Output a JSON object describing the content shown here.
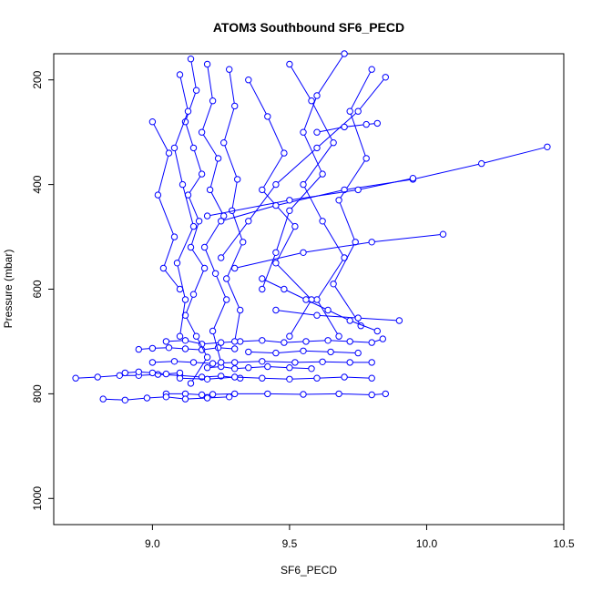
{
  "chart_data": {
    "type": "scatter",
    "title": "ATOM3 Southbound SF6_PECD",
    "xlabel": "SF6_PECD",
    "ylabel": "Pressure (mbar)",
    "xlim": [
      8.64,
      10.5
    ],
    "ylim": [
      1050,
      150
    ],
    "y_reversed": true,
    "x_ticks": [
      9.0,
      9.5,
      10.0,
      10.5
    ],
    "x_tick_labels": [
      "9.0",
      "9.5",
      "10.0",
      "10.5"
    ],
    "y_ticks": [
      200,
      400,
      600,
      800,
      1000
    ],
    "y_tick_labels": [
      "200",
      "400",
      "600",
      "800",
      "1000"
    ],
    "grid": false,
    "series_color": "#0000ff",
    "marker": "open-circle",
    "style": "lines-and-points",
    "series": [
      {
        "x": [
          9.05,
          9.12,
          9.18,
          9.22,
          9.3,
          9.42,
          9.55,
          9.68,
          9.8,
          9.85
        ],
        "y": [
          800,
          800,
          802,
          801,
          800,
          800,
          801,
          800,
          802,
          800
        ]
      },
      {
        "x": [
          8.72,
          8.8,
          8.88,
          8.95,
          9.02,
          9.1,
          9.18,
          9.25,
          9.32
        ],
        "y": [
          770,
          768,
          765,
          765,
          763,
          765,
          768,
          766,
          770
        ]
      },
      {
        "x": [
          8.82,
          8.9,
          8.98,
          9.05,
          9.12,
          9.2,
          9.28
        ],
        "y": [
          810,
          812,
          808,
          806,
          810,
          808,
          806
        ]
      },
      {
        "x": [
          9.0,
          9.08,
          9.15,
          9.22,
          9.3,
          9.4,
          9.52,
          9.62,
          9.72,
          9.8
        ],
        "y": [
          740,
          738,
          740,
          742,
          740,
          738,
          740,
          739,
          740,
          740
        ]
      },
      {
        "x": [
          9.05,
          9.12,
          9.18,
          9.25,
          9.32,
          9.4,
          9.48,
          9.56,
          9.64,
          9.72,
          9.8,
          9.84
        ],
        "y": [
          700,
          698,
          705,
          702,
          700,
          698,
          702,
          700,
          698,
          700,
          702,
          695
        ]
      },
      {
        "x": [
          8.95,
          9.0,
          9.06,
          9.12,
          9.18,
          9.24,
          9.3
        ],
        "y": [
          715,
          713,
          712,
          714,
          716,
          712,
          714
        ]
      },
      {
        "x": [
          9.2,
          9.25,
          9.3,
          9.35,
          9.42,
          9.5,
          9.58
        ],
        "y": [
          750,
          748,
          752,
          750,
          748,
          750,
          752
        ]
      },
      {
        "x": [
          9.14,
          9.16,
          9.12,
          9.15,
          9.18,
          9.13,
          9.17,
          9.14,
          9.19,
          9.15,
          9.12,
          9.16,
          9.2,
          9.14
        ],
        "y": [
          160,
          220,
          280,
          330,
          380,
          420,
          470,
          520,
          560,
          610,
          650,
          690,
          730,
          780
        ]
      },
      {
        "x": [
          9.2,
          9.22,
          9.18,
          9.24,
          9.21,
          9.26,
          9.19,
          9.23,
          9.27,
          9.22,
          9.25
        ],
        "y": [
          170,
          240,
          300,
          350,
          410,
          460,
          520,
          570,
          620,
          680,
          740
        ]
      },
      {
        "x": [
          9.28,
          9.3,
          9.26,
          9.31,
          9.29,
          9.33,
          9.27,
          9.32,
          9.3
        ],
        "y": [
          180,
          250,
          320,
          390,
          450,
          510,
          580,
          640,
          700
        ]
      },
      {
        "x": [
          9.1,
          9.13,
          9.08,
          9.11,
          9.15,
          9.09,
          9.12,
          9.1
        ],
        "y": [
          190,
          260,
          330,
          400,
          480,
          550,
          620,
          690
        ]
      },
      {
        "x": [
          9.85,
          9.75,
          9.6,
          9.45,
          9.35,
          9.25
        ],
        "y": [
          195,
          260,
          330,
          400,
          470,
          540
        ]
      },
      {
        "x": [
          9.7,
          9.6,
          9.55,
          9.62,
          9.5,
          9.45,
          9.4
        ],
        "y": [
          150,
          230,
          300,
          380,
          450,
          530,
          600
        ]
      },
      {
        "x": [
          9.5,
          9.58,
          9.66,
          9.55,
          9.62,
          9.7,
          9.6,
          9.68
        ],
        "y": [
          170,
          240,
          320,
          400,
          470,
          540,
          620,
          690
        ]
      },
      {
        "x": [
          9.35,
          9.42,
          9.48,
          9.4,
          9.52,
          9.45,
          9.58,
          9.5
        ],
        "y": [
          200,
          270,
          340,
          410,
          480,
          550,
          620,
          690
        ]
      },
      {
        "x": [
          9.8,
          9.72,
          9.78,
          9.68,
          9.74,
          9.66,
          9.76
        ],
        "y": [
          180,
          260,
          350,
          430,
          510,
          590,
          670
        ]
      },
      {
        "x": [
          9.25,
          9.45,
          9.7,
          9.95,
          10.2,
          10.44
        ],
        "y": [
          470,
          440,
          410,
          390,
          360,
          328
        ]
      },
      {
        "x": [
          9.3,
          9.55,
          9.8,
          10.06
        ],
        "y": [
          560,
          530,
          510,
          495
        ]
      },
      {
        "x": [
          9.2,
          9.5,
          9.75,
          9.95
        ],
        "y": [
          460,
          430,
          410,
          388
        ]
      },
      {
        "x": [
          9.6,
          9.7,
          9.78,
          9.82
        ],
        "y": [
          300,
          290,
          285,
          283
        ]
      },
      {
        "x": [
          9.45,
          9.6,
          9.75,
          9.9
        ],
        "y": [
          640,
          650,
          655,
          660
        ]
      },
      {
        "x": [
          9.0,
          9.06,
          9.02,
          9.08,
          9.04,
          9.1
        ],
        "y": [
          280,
          340,
          420,
          500,
          560,
          600
        ]
      },
      {
        "x": [
          9.4,
          9.48,
          9.56,
          9.64,
          9.72,
          9.82
        ],
        "y": [
          580,
          600,
          620,
          640,
          660,
          680
        ]
      },
      {
        "x": [
          9.1,
          9.2,
          9.3,
          9.4,
          9.5,
          9.6,
          9.7,
          9.8
        ],
        "y": [
          770,
          772,
          768,
          770,
          772,
          770,
          768,
          770
        ]
      },
      {
        "x": [
          9.35,
          9.45,
          9.55,
          9.65,
          9.75
        ],
        "y": [
          720,
          722,
          718,
          720,
          722
        ]
      },
      {
        "x": [
          8.9,
          8.95,
          9.0,
          9.05,
          9.1
        ],
        "y": [
          760,
          758,
          760,
          762,
          760
        ]
      }
    ]
  }
}
